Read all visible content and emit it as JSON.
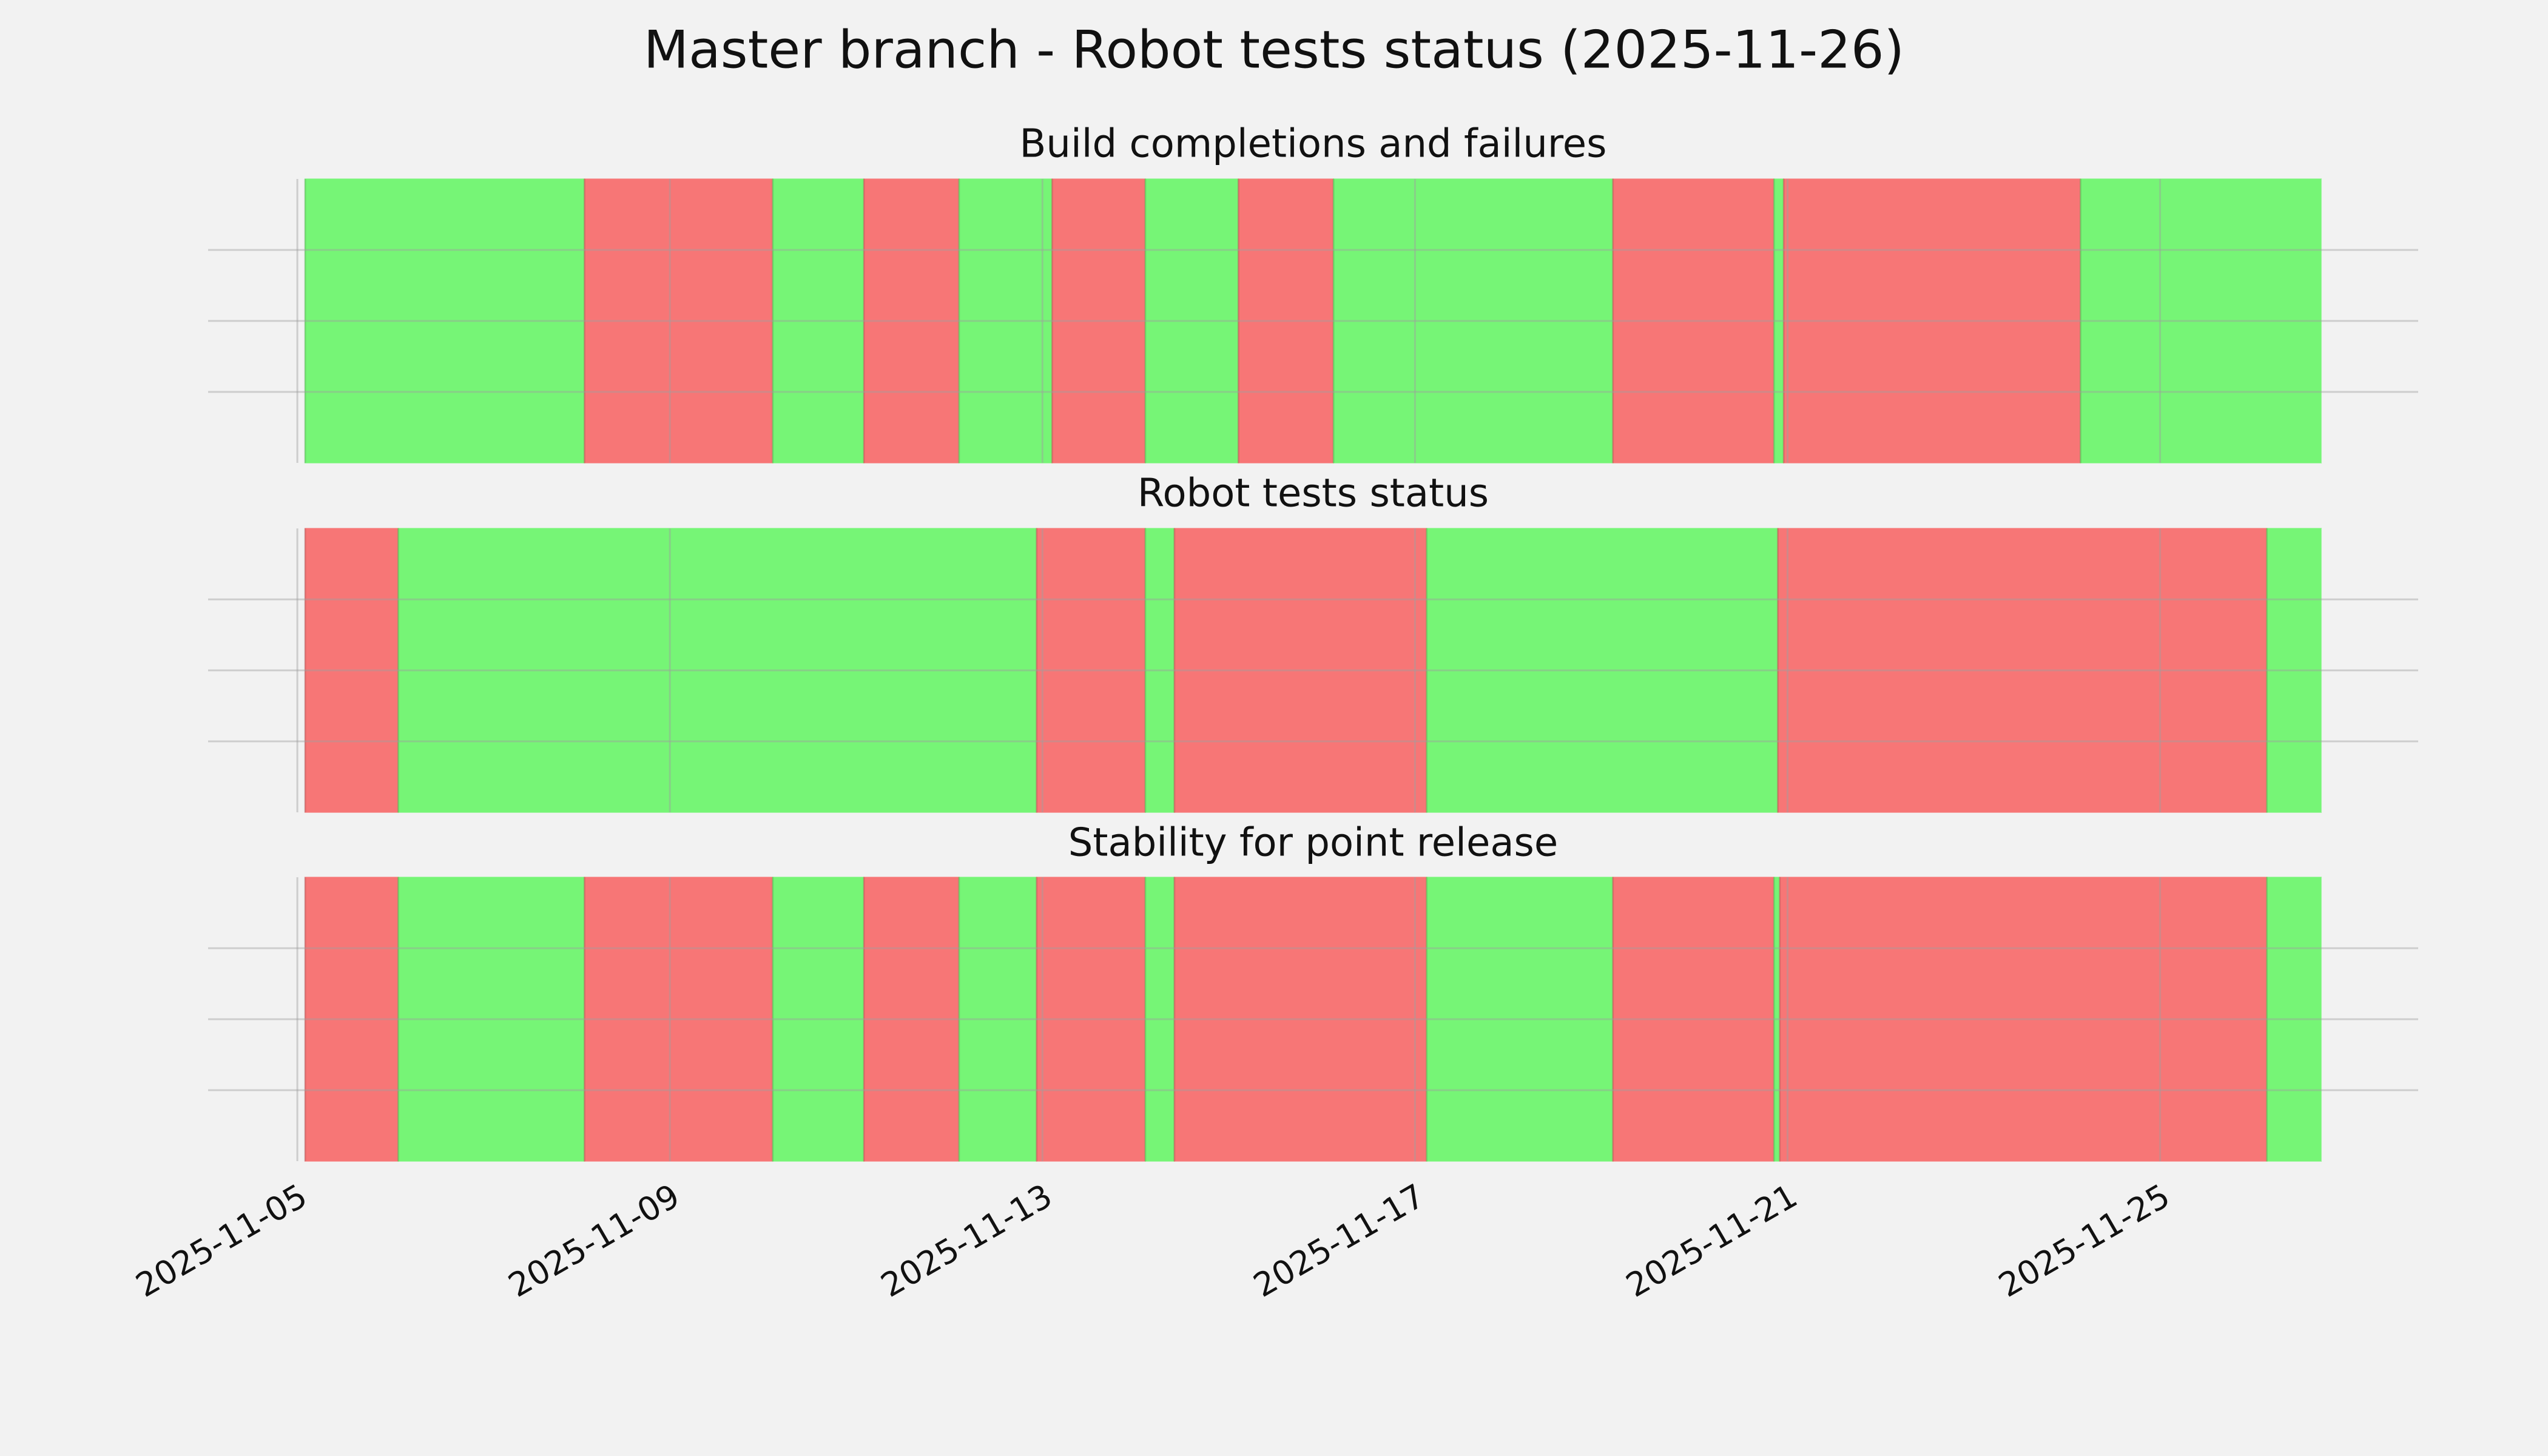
{
  "title": "Master branch - Robot tests status (2025-11-26)",
  "chart_data": [
    {
      "type": "timeline",
      "title": "Build completions and failures",
      "x": [
        "2025-11-05T02:00",
        "2025-11-08T02:00",
        "2025-11-10T02:30",
        "2025-11-11T02:00",
        "2025-11-12T02:30",
        "2025-11-13T02:30",
        "2025-11-14T02:30",
        "2025-11-15T02:30",
        "2025-11-16T03:00",
        "2025-11-19T03:00",
        "2025-11-20T20:30",
        "2025-11-20T23:00",
        "2025-11-24T03:30",
        "2025-11-26T17:30"
      ],
      "colors": [
        "#76f576",
        "#f77676",
        "#76f576",
        "#f77676",
        "#76f576",
        "#f77676",
        "#76f576",
        "#f77676",
        "#76f576",
        "#f77676",
        "#76f576",
        "#f77676",
        "#76f576"
      ],
      "xlim": [
        "2025-11-04T01:00",
        "2025-11-27T18:30"
      ],
      "xticks": [
        "2025-11-05",
        "2025-11-09",
        "2025-11-13",
        "2025-11-17",
        "2025-11-21",
        "2025-11-25"
      ],
      "ylim": [
        0,
        1
      ],
      "yticks": [
        0.25,
        0.5,
        0.75
      ],
      "grid": true
    },
    {
      "type": "timeline",
      "title": "Robot tests status",
      "x": [
        "2025-11-05T02:00",
        "2025-11-06T02:00",
        "2025-11-12T22:30",
        "2025-11-14T02:30",
        "2025-11-14T10:00",
        "2025-11-17T03:00",
        "2025-11-20T21:30",
        "2025-11-26T03:30",
        "2025-11-26T17:30"
      ],
      "colors": [
        "#f77676",
        "#76f576",
        "#f77676",
        "#76f576",
        "#f77676",
        "#76f576",
        "#f77676",
        "#76f576"
      ],
      "xlim": [
        "2025-11-04T01:00",
        "2025-11-27T18:30"
      ],
      "xticks": [
        "2025-11-05",
        "2025-11-09",
        "2025-11-13",
        "2025-11-17",
        "2025-11-21",
        "2025-11-25"
      ],
      "ylim": [
        0,
        1
      ],
      "yticks": [
        0.25,
        0.5,
        0.75
      ],
      "grid": true
    },
    {
      "type": "timeline",
      "title": "Stability for point release",
      "x": [
        "2025-11-05T02:00",
        "2025-11-06T02:00",
        "2025-11-08T02:00",
        "2025-11-10T02:30",
        "2025-11-11T02:00",
        "2025-11-12T02:30",
        "2025-11-12T22:30",
        "2025-11-14T02:30",
        "2025-11-14T10:00",
        "2025-11-17T03:00",
        "2025-11-19T03:00",
        "2025-11-20T20:30",
        "2025-11-20T22:00",
        "2025-11-26T03:30",
        "2025-11-26T17:30"
      ],
      "colors": [
        "#f77676",
        "#76f576",
        "#f77676",
        "#76f576",
        "#f77676",
        "#76f576",
        "#f77676",
        "#76f576",
        "#f77676",
        "#76f576",
        "#f77676",
        "#76f576",
        "#f77676",
        "#76f576"
      ],
      "xlim": [
        "2025-11-04T01:00",
        "2025-11-27T18:30"
      ],
      "xticks": [
        "2025-11-05",
        "2025-11-09",
        "2025-11-13",
        "2025-11-17",
        "2025-11-21",
        "2025-11-25"
      ],
      "ylim": [
        0,
        1
      ],
      "yticks": [
        0.25,
        0.5,
        0.75
      ],
      "grid": true,
      "xtick_labels": true
    }
  ]
}
